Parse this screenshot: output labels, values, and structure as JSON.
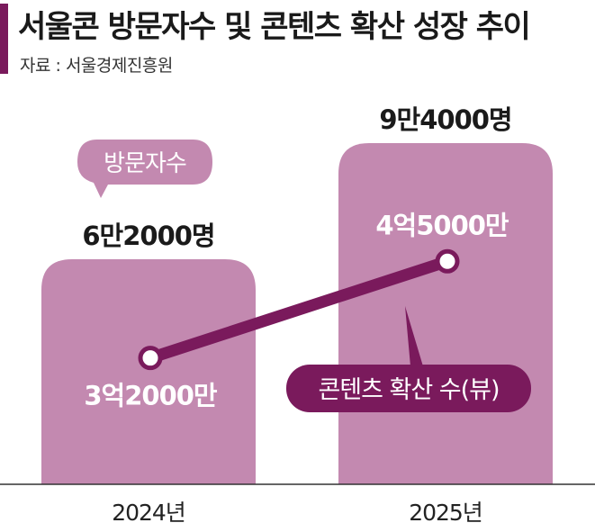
{
  "header": {
    "title": "서울콘 방문자수 및 콘텐츠 확산 성장 추이",
    "source": "자료 : 서울경제진흥원"
  },
  "colors": {
    "bar": "#c389b0",
    "line": "#7a1a5c",
    "accent": "#7a1a5c",
    "axis": "#333333"
  },
  "chart_data": {
    "type": "bar",
    "categories": [
      "2024년",
      "2025년"
    ],
    "series": [
      {
        "name": "방문자수",
        "type": "bar",
        "values": [
          62000,
          94000
        ],
        "value_labels": [
          "6만2000명",
          "9만4000명"
        ]
      },
      {
        "name": "콘텐츠 확산 수(뷰)",
        "type": "line",
        "values": [
          320000000,
          450000000
        ],
        "value_labels": [
          "3억2000만",
          "4억5000만"
        ]
      }
    ]
  }
}
